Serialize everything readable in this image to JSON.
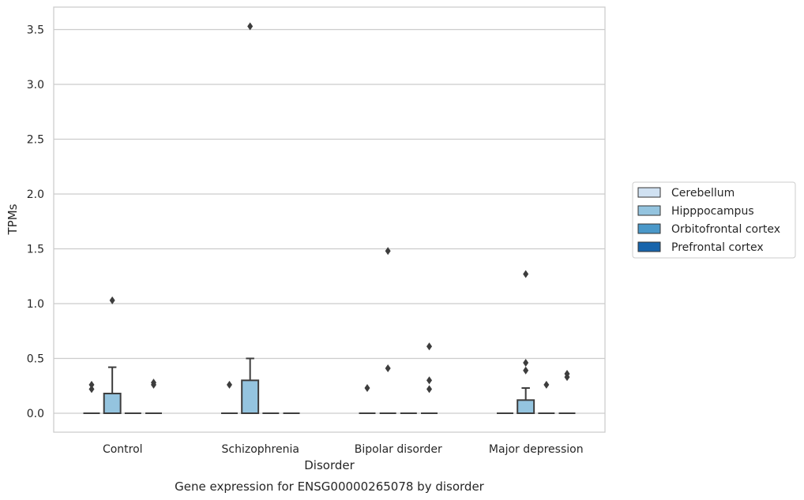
{
  "chart_data": {
    "type": "box",
    "title": "",
    "caption": "Gene expression for ENSG00000265078 by disorder",
    "xlabel": "Disorder",
    "ylabel": "TPMs",
    "ylim": [
      -0.17,
      3.71
    ],
    "yticks": [
      0.0,
      0.5,
      1.0,
      1.5,
      2.0,
      2.5,
      3.0,
      3.5
    ],
    "ytick_labels": [
      "0.0",
      "0.5",
      "1.0",
      "1.5",
      "2.0",
      "2.5",
      "3.0",
      "3.5"
    ],
    "grid": "horizontal",
    "legend_position": "right",
    "categories": [
      "Control",
      "Schizophrenia",
      "Bipolar disorder",
      "Major depression"
    ],
    "series": [
      {
        "name": "Cerebellum",
        "color": "#d0e1f2",
        "boxes": [
          {
            "q1": 0,
            "median": 0,
            "q3": 0,
            "whisker_low": 0,
            "whisker_high": 0,
            "outliers": [
              0.22,
              0.26
            ]
          },
          {
            "q1": 0,
            "median": 0,
            "q3": 0,
            "whisker_low": 0,
            "whisker_high": 0,
            "outliers": [
              0.26
            ]
          },
          {
            "q1": 0,
            "median": 0,
            "q3": 0,
            "whisker_low": 0,
            "whisker_high": 0,
            "outliers": [
              0.23
            ]
          },
          {
            "q1": 0,
            "median": 0,
            "q3": 0,
            "whisker_low": 0,
            "whisker_high": 0,
            "outliers": []
          }
        ]
      },
      {
        "name": "Hipppocampus",
        "color": "#94c4df",
        "boxes": [
          {
            "q1": 0,
            "median": 0,
            "q3": 0.18,
            "whisker_low": 0,
            "whisker_high": 0.42,
            "outliers": [
              1.03
            ]
          },
          {
            "q1": 0,
            "median": 0,
            "q3": 0.3,
            "whisker_low": 0,
            "whisker_high": 0.5,
            "outliers": [
              3.53
            ]
          },
          {
            "q1": 0,
            "median": 0,
            "q3": 0,
            "whisker_low": 0,
            "whisker_high": 0,
            "outliers": [
              0.41,
              1.48
            ]
          },
          {
            "q1": 0,
            "median": 0,
            "q3": 0.12,
            "whisker_low": 0,
            "whisker_high": 0.23,
            "outliers": [
              0.39,
              0.46,
              1.27
            ]
          }
        ]
      },
      {
        "name": "Orbitofrontal cortex",
        "color": "#4a98c9",
        "boxes": [
          {
            "q1": 0,
            "median": 0,
            "q3": 0,
            "whisker_low": 0,
            "whisker_high": 0,
            "outliers": []
          },
          {
            "q1": 0,
            "median": 0,
            "q3": 0,
            "whisker_low": 0,
            "whisker_high": 0,
            "outliers": []
          },
          {
            "q1": 0,
            "median": 0,
            "q3": 0,
            "whisker_low": 0,
            "whisker_high": 0,
            "outliers": []
          },
          {
            "q1": 0,
            "median": 0,
            "q3": 0,
            "whisker_low": 0,
            "whisker_high": 0,
            "outliers": [
              0.26
            ]
          }
        ]
      },
      {
        "name": "Prefrontal cortex",
        "color": "#1764ab",
        "boxes": [
          {
            "q1": 0,
            "median": 0,
            "q3": 0,
            "whisker_low": 0,
            "whisker_high": 0,
            "outliers": [
              0.26,
              0.28
            ]
          },
          {
            "q1": 0,
            "median": 0,
            "q3": 0,
            "whisker_low": 0,
            "whisker_high": 0,
            "outliers": []
          },
          {
            "q1": 0,
            "median": 0,
            "q3": 0,
            "whisker_low": 0,
            "whisker_high": 0,
            "outliers": [
              0.22,
              0.3,
              0.61
            ]
          },
          {
            "q1": 0,
            "median": 0,
            "q3": 0,
            "whisker_low": 0,
            "whisker_high": 0,
            "outliers": [
              0.33,
              0.36
            ]
          }
        ]
      }
    ]
  },
  "colors": {
    "grid": "#cccccc",
    "axes_edge": "#cccccc",
    "box_edge": "#3d3d3d",
    "text": "#262626"
  }
}
